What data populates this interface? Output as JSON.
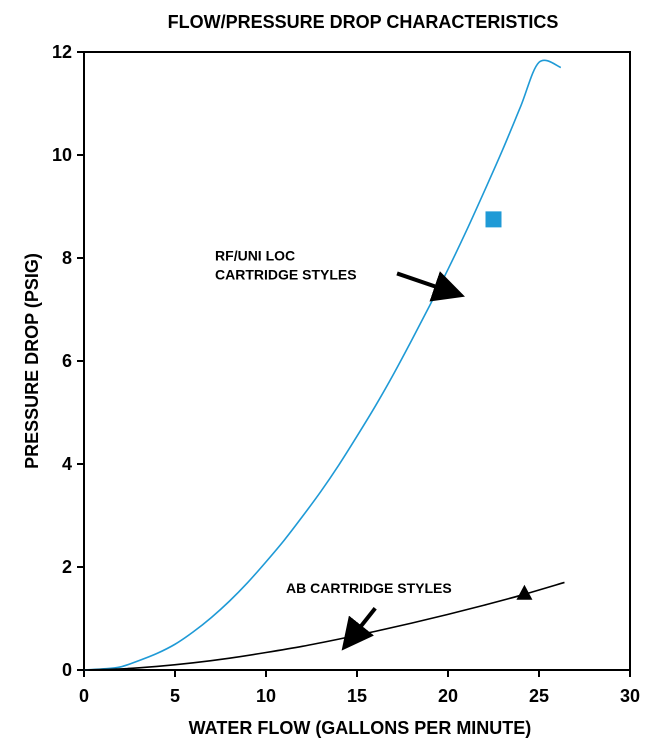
{
  "chart_data": {
    "type": "line",
    "title": "FLOW/PRESSURE DROP CHARACTERISTICS",
    "xlabel": "WATER FLOW (GALLONS PER MINUTE)",
    "ylabel": "PRESSURE DROP (PSIG)",
    "xlim": [
      0,
      30
    ],
    "ylim": [
      0,
      12
    ],
    "x_ticks": [
      "0",
      "5",
      "10",
      "15",
      "20",
      "25",
      "30"
    ],
    "y_ticks": [
      "0",
      "2",
      "4",
      "6",
      "8",
      "10",
      "12"
    ],
    "grid": false,
    "series": [
      {
        "name": "RF/UNI LOC CARTRIDGE STYLES",
        "color": "#1f9ad6",
        "marker": "square",
        "marker_point": [
          22.5,
          8.75
        ],
        "x": [
          0,
          1,
          2,
          3,
          4,
          5,
          6,
          7,
          8,
          9,
          10,
          11,
          12,
          13,
          14,
          15,
          16,
          17,
          18,
          19,
          20,
          21,
          22,
          23,
          24,
          25,
          26.2
        ],
        "y": [
          0.0,
          0.02,
          0.06,
          0.18,
          0.32,
          0.5,
          0.74,
          1.02,
          1.34,
          1.7,
          2.1,
          2.52,
          2.98,
          3.46,
          3.98,
          4.54,
          5.12,
          5.74,
          6.4,
          7.08,
          7.78,
          8.52,
          9.3,
          10.1,
          10.95,
          11.8,
          11.7
        ]
      },
      {
        "name": "AB CARTRIDGE STYLES",
        "color": "#000000",
        "marker": "triangle",
        "marker_point": [
          24.2,
          1.48
        ],
        "x": [
          0,
          2,
          4,
          6,
          8,
          10,
          12,
          14,
          16,
          18,
          20,
          22,
          24,
          26.4
        ],
        "y": [
          0.0,
          0.02,
          0.07,
          0.14,
          0.23,
          0.34,
          0.46,
          0.6,
          0.75,
          0.91,
          1.08,
          1.26,
          1.45,
          1.7
        ]
      }
    ],
    "annotations": [
      {
        "text_lines": [
          "RF/UNI LOC",
          "CARTRIDGE STYLES"
        ],
        "series": 0,
        "text_at": [
          7.2,
          7.95
        ],
        "arrow_from": [
          17.2,
          7.7
        ],
        "arrow_to": [
          20.1,
          7.35
        ]
      },
      {
        "text_lines": [
          "AB CARTRIDGE STYLES"
        ],
        "series": 1,
        "text_at": [
          11.1,
          1.5
        ],
        "arrow_from": [
          16.0,
          1.2
        ],
        "arrow_to": [
          14.7,
          0.62
        ]
      }
    ]
  }
}
